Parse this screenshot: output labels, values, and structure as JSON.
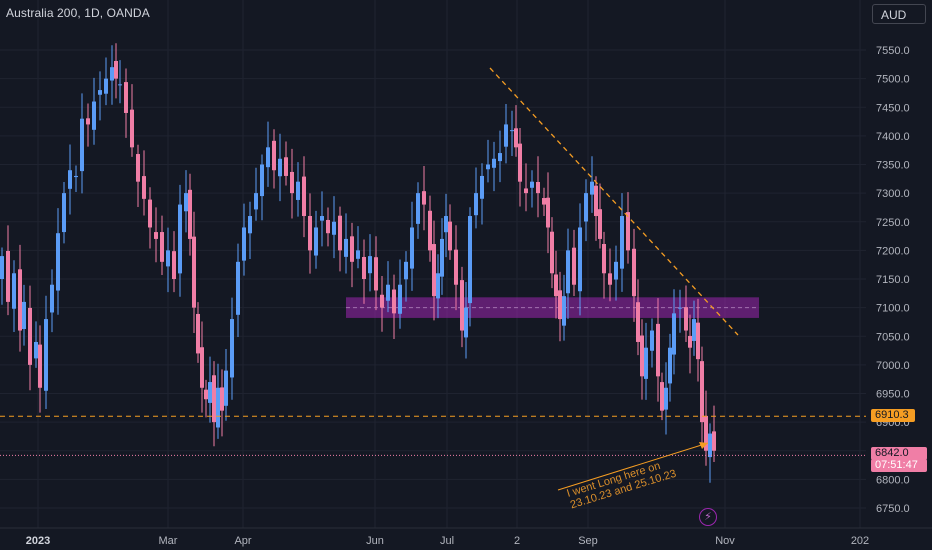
{
  "header": {
    "title": "Australia 200, 1D, OANDA",
    "currency": "AUD"
  },
  "colors": {
    "background": "#141823",
    "grid": "#1f2330",
    "up": "#5b9cf6",
    "down": "#f07ea6",
    "trendline": "#f59d23",
    "zone": "#9c27b0"
  },
  "chart_data": {
    "type": "candlestick",
    "y_axis": {
      "ticks": [
        7550,
        7500,
        7450,
        7400,
        7350,
        7300,
        7250,
        7200,
        7150,
        7100,
        7050,
        7000,
        6950,
        6900,
        6850,
        6800,
        6750
      ],
      "labels": [
        "7550.0",
        "7500.0",
        "7450.0",
        "7400.0",
        "7350.0",
        "7300.0",
        "7250.0",
        "7200.0",
        "7150.0",
        "7100.0",
        "7050.0",
        "7000.0",
        "6950.0",
        "6900.0",
        "6850.0",
        "6800.0",
        "6750.0"
      ],
      "range": [
        6725,
        7590
      ]
    },
    "x_axis": {
      "labels": [
        "2023",
        "Mar",
        "Apr",
        "Jun",
        "Jul",
        "2",
        "Sep",
        "Nov",
        "202"
      ]
    },
    "price_levels": {
      "horizontal_line": {
        "value": 6910.3,
        "label": "6910.3"
      },
      "last_price": {
        "value": 6842.0,
        "label": "6842.0",
        "timer": "07:51:47"
      }
    },
    "resistance_zone": {
      "low": 7082,
      "high": 7118
    },
    "annotation": {
      "lines": [
        "I went Long here on",
        "23.10.23 and 25.10.23"
      ]
    },
    "grid": true
  }
}
